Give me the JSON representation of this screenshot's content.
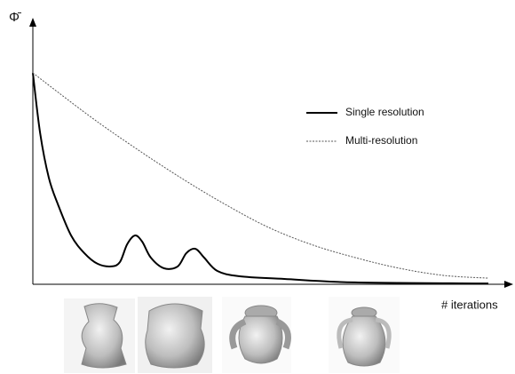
{
  "chart_data": {
    "type": "line",
    "y_label": "Φ̄",
    "x_label": "# iterations",
    "x": [
      0,
      1.6,
      3.5,
      5.5,
      8.4,
      11.3,
      14.2,
      17.2,
      19.1,
      20.7,
      22.4,
      24.0,
      25.9,
      28.8,
      31.8,
      33.7,
      35.7,
      37.6,
      40.5,
      45.4,
      55.2,
      70.8,
      100
    ],
    "series": [
      {
        "name": "Single resolution",
        "color": "#000000",
        "values": [
          79.3,
          56.7,
          40,
          30,
          18.3,
          11.7,
          7.7,
          6.7,
          8.3,
          15,
          18.3,
          16,
          10,
          6,
          6.7,
          11.7,
          13.3,
          10,
          5,
          3,
          2,
          0.7,
          0.3
        ]
      },
      {
        "name": "Multi-resolution",
        "color": "#555555",
        "dashed": true,
        "x": [
          0,
          12.3,
          22.0,
          31.8,
          41.5,
          51.3,
          61.0,
          70.8,
          80.5,
          90.3,
          100
        ],
        "values": [
          79.3,
          63.3,
          51.7,
          40.7,
          30.7,
          21.7,
          15,
          10,
          6,
          3.3,
          2.3
        ]
      }
    ],
    "xlim": [
      0,
      100
    ],
    "ylim": [
      0,
      100
    ]
  }
}
